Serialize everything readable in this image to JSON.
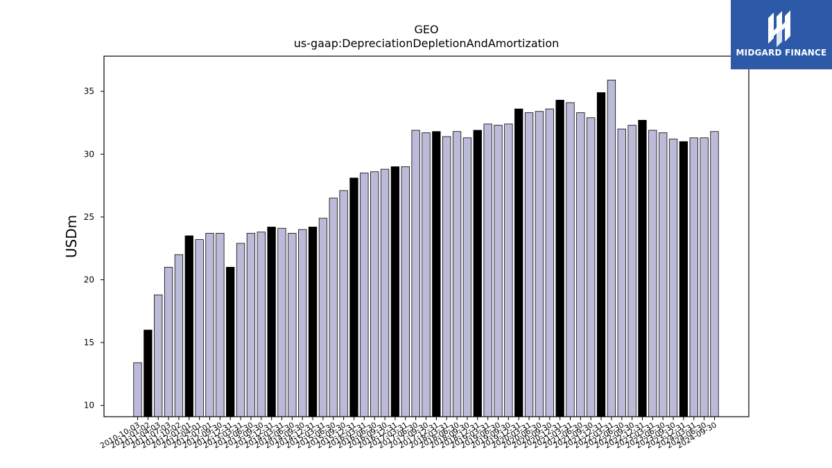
{
  "chart_data": {
    "type": "bar",
    "title": "GEO",
    "subtitle": "us-gaap:DepreciationDepletionAndAmortization",
    "xlabel": "",
    "ylabel": "USDm",
    "ylim": [
      9.1,
      37.8
    ],
    "yticks": [
      10,
      15,
      20,
      25,
      30,
      35
    ],
    "grid": false,
    "legend": "none",
    "colors": {
      "regular": "#bcbad9",
      "highlight": "#000000",
      "edge": "#000000"
    },
    "categories": [
      "2010-10-03",
      "2011-01-02",
      "2011-04-03",
      "2011-07-03",
      "2011-10-02",
      "2012-01-01",
      "2012-04-01",
      "2012-07-01",
      "2012-09-30",
      "2012-12-31",
      "2013-03-31",
      "2013-06-30",
      "2013-09-30",
      "2013-12-31",
      "2014-03-31",
      "2014-06-30",
      "2014-09-30",
      "2014-12-31",
      "2015-03-31",
      "2015-06-30",
      "2015-09-30",
      "2015-12-31",
      "2016-03-31",
      "2016-06-30",
      "2016-09-30",
      "2016-12-31",
      "2017-03-31",
      "2017-06-30",
      "2017-09-30",
      "2017-12-31",
      "2018-03-31",
      "2018-06-30",
      "2018-09-30",
      "2018-12-31",
      "2019-03-31",
      "2019-06-30",
      "2019-09-30",
      "2019-12-31",
      "2020-03-31",
      "2020-06-30",
      "2020-09-30",
      "2020-12-31",
      "2021-03-31",
      "2021-06-30",
      "2021-09-30",
      "2021-12-31",
      "2022-03-31",
      "2022-06-30",
      "2022-09-30",
      "2022-12-31",
      "2023-03-31",
      "2023-06-30",
      "2023-09-30",
      "2023-12-31",
      "2024-03-31",
      "2024-06-30",
      "2024-09-30"
    ],
    "values": [
      13.4,
      16.0,
      18.8,
      21.0,
      22.0,
      23.5,
      23.2,
      23.7,
      23.7,
      21.0,
      22.9,
      23.7,
      23.8,
      24.2,
      24.1,
      23.7,
      24.0,
      24.2,
      24.9,
      26.5,
      27.1,
      28.1,
      28.5,
      28.6,
      28.8,
      29.0,
      29.0,
      31.9,
      31.7,
      31.8,
      31.4,
      31.8,
      31.3,
      31.9,
      32.4,
      32.3,
      32.4,
      33.6,
      33.3,
      33.4,
      33.6,
      34.3,
      34.1,
      33.3,
      32.9,
      34.9,
      35.9,
      32.0,
      32.3,
      32.7,
      31.9,
      31.7,
      31.2,
      31.0,
      31.3,
      31.3,
      31.8
    ],
    "highlight": [
      false,
      true,
      false,
      false,
      false,
      true,
      false,
      false,
      false,
      true,
      false,
      false,
      false,
      true,
      false,
      false,
      false,
      true,
      false,
      false,
      false,
      true,
      false,
      false,
      false,
      true,
      false,
      false,
      false,
      true,
      false,
      false,
      false,
      true,
      false,
      false,
      false,
      true,
      false,
      false,
      false,
      true,
      false,
      false,
      false,
      true,
      false,
      false,
      false,
      true,
      false,
      false,
      false,
      true,
      false,
      false,
      false
    ]
  },
  "logo": {
    "text": "MIDGARD FINANCE",
    "icon": "midgard-logo-icon",
    "background": "#2c5aa8"
  }
}
